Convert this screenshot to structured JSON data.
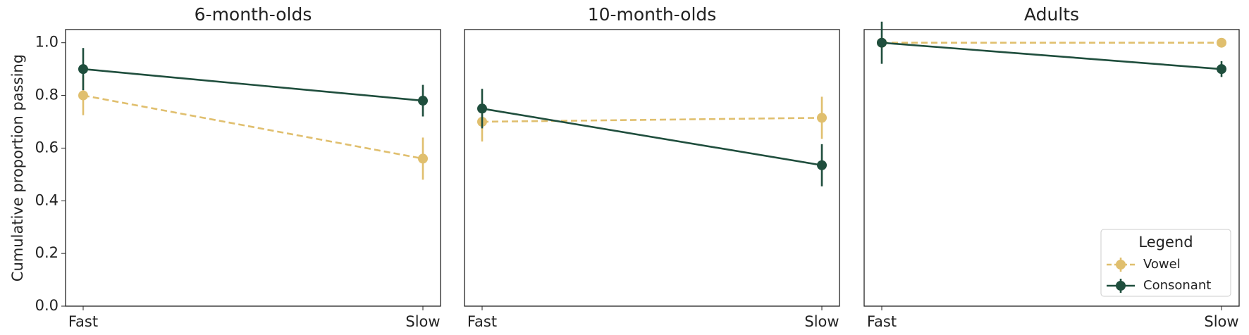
{
  "chart_data": [
    {
      "type": "line",
      "title": "6-month-olds",
      "ylabel": "Cumulative proportion passing",
      "categories": [
        "Fast",
        "Slow"
      ],
      "ylim": [
        0,
        1.05
      ],
      "yticks": [
        {
          "value": 0,
          "label": "0.0"
        },
        0.2,
        0.4,
        0.6,
        0.8,
        {
          "value": 1,
          "label": "1.0"
        }
      ],
      "series": [
        {
          "color": "#e0bf6e",
          "dashed": true,
          "values": [
            0.8,
            0.56
          ],
          "errors": [
            0.075,
            0.08
          ]
        },
        {
          "color": "#1f4e3d",
          "dashed": false,
          "values": [
            0.9,
            0.78
          ],
          "errors": [
            0.08,
            0.06
          ]
        }
      ]
    },
    {
      "type": "line",
      "title": "10-month-olds",
      "categories": [
        "Fast",
        "Slow"
      ],
      "ylim": [
        0,
        1.05
      ],
      "series": [
        {
          "color": "#e0bf6e",
          "dashed": true,
          "values": [
            0.7,
            0.715
          ],
          "errors": [
            0.075,
            0.08
          ]
        },
        {
          "color": "#1f4e3d",
          "dashed": false,
          "values": [
            0.75,
            0.535
          ],
          "errors": [
            0.075,
            0.08
          ]
        }
      ]
    },
    {
      "type": "line",
      "title": "Adults",
      "categories": [
        "Fast",
        "Slow"
      ],
      "ylim": [
        0,
        1.05
      ],
      "legend": {
        "title": "Legend",
        "loc": "lower right"
      },
      "series": [
        {
          "name": "Vowel",
          "color": "#e0bf6e",
          "dashed": true,
          "values": [
            1.0,
            1.0
          ],
          "errors": [
            0,
            0
          ]
        },
        {
          "name": "Consonant",
          "color": "#1f4e3d",
          "dashed": false,
          "values": [
            1.0,
            0.9
          ],
          "errors": [
            0.08,
            0.03
          ]
        }
      ]
    }
  ]
}
